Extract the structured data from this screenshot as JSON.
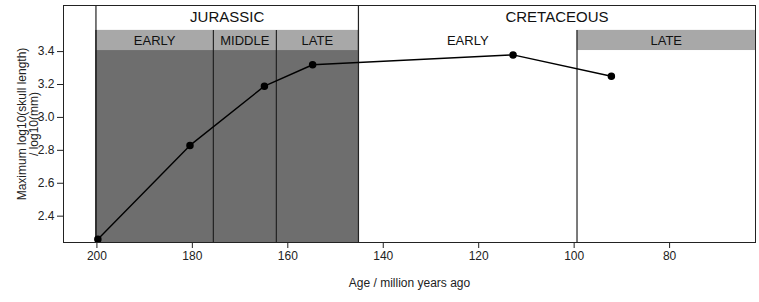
{
  "chart_data": {
    "type": "line",
    "x_label": "Age / million years ago",
    "y_label": "Maximum log10(skull length)\n/ log10(mm)",
    "x": [
      199.8,
      180.5,
      164.9,
      154.8,
      112.8,
      92.2
    ],
    "values": [
      2.26,
      2.83,
      3.19,
      3.32,
      3.38,
      3.25
    ],
    "color": "#000000",
    "marker": "circle",
    "xlim": [
      207,
      62
    ],
    "ylim": [
      2.24,
      3.68
    ],
    "xticks": [
      200,
      180,
      160,
      140,
      120,
      100,
      80
    ],
    "yticks": [
      2.4,
      2.6,
      2.8,
      {
        "value": 3,
        "label": "3.0"
      },
      3.2,
      3.4
    ],
    "periods": [
      {
        "name": "JURASSIC",
        "start": 200.2,
        "end": 145.2,
        "color": "#6e6e6e"
      },
      {
        "name": "CRETACEOUS",
        "start": 145.2,
        "end": 62,
        "color": "#ffffff"
      }
    ],
    "epochs": [
      {
        "name": "EARLY",
        "start": 200.2,
        "end": 175.6,
        "color": "#a8a8a8"
      },
      {
        "name": "MIDDLE",
        "start": 175.6,
        "end": 162.4,
        "color": "#a8a8a8"
      },
      {
        "name": "LATE",
        "start": 162.4,
        "end": 145.2,
        "color": "#a8a8a8"
      },
      {
        "name": "EARLY",
        "start": 145.2,
        "end": 99.4,
        "color": "#ffffff"
      },
      {
        "name": "LATE",
        "start": 99.4,
        "end": 62,
        "color": "#a8a8a8"
      }
    ]
  }
}
